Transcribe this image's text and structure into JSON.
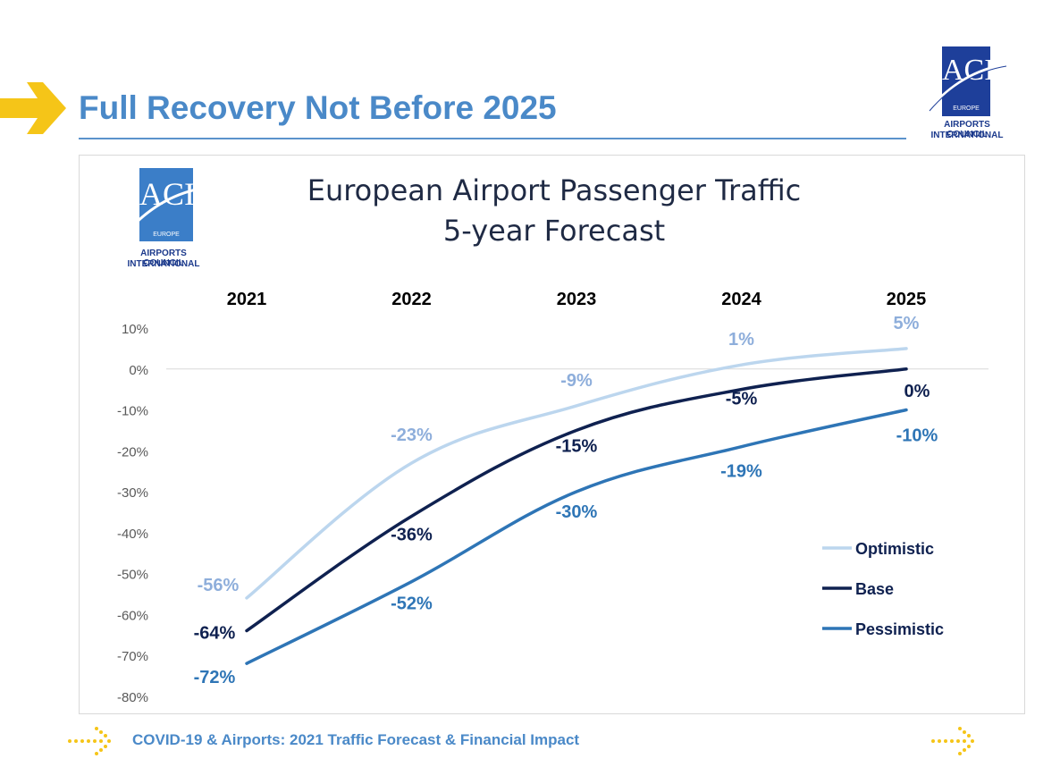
{
  "slide": {
    "title": "Full Recovery Not Before 2025",
    "footer": "COVID-19 & Airports: 2021 Traffic Forecast & Financial Impact"
  },
  "logo": {
    "mark": "ACI",
    "region": "EUROPE",
    "line1": "AIRPORTS COUNCIL",
    "line2": "INTERNATIONAL"
  },
  "colors": {
    "accent_yellow": "#f5c518",
    "title_blue": "#4a89c8",
    "optimistic": "#bcd6ee",
    "base": "#0f2150",
    "pessimistic": "#2e75b6"
  },
  "chart_data": {
    "type": "line",
    "title": "European Airport Passenger Traffic",
    "subtitle": "5-year Forecast",
    "categories": [
      "2021",
      "2022",
      "2023",
      "2024",
      "2025"
    ],
    "ylim": [
      -80,
      10
    ],
    "yticks": [
      "10%",
      "0%",
      "-10%",
      "-20%",
      "-30%",
      "-40%",
      "-50%",
      "-60%",
      "-70%",
      "-80%"
    ],
    "ytick_values": [
      10,
      0,
      -10,
      -20,
      -30,
      -40,
      -50,
      -60,
      -70,
      -80
    ],
    "grid": false,
    "legend_position": "bottom-right",
    "series": [
      {
        "name": "Optimistic",
        "values": [
          -56,
          -23,
          -9,
          1,
          5
        ],
        "labels": [
          "-56%",
          "-23%",
          "-9%",
          "1%",
          "5%"
        ],
        "color": "#bcd6ee",
        "label_color": "#8eaedb"
      },
      {
        "name": "Base",
        "values": [
          -64,
          -36,
          -15,
          -5,
          0
        ],
        "labels": [
          "-64%",
          "-36%",
          "-15%",
          "-5%",
          "0%"
        ],
        "color": "#0f2150",
        "label_color": "#0f2150"
      },
      {
        "name": "Pessimistic",
        "values": [
          -72,
          -52,
          -30,
          -19,
          -10
        ],
        "labels": [
          "-72%",
          "-52%",
          "-30%",
          "-19%",
          "-10%"
        ],
        "color": "#2e75b6",
        "label_color": "#2e75b6"
      }
    ]
  }
}
